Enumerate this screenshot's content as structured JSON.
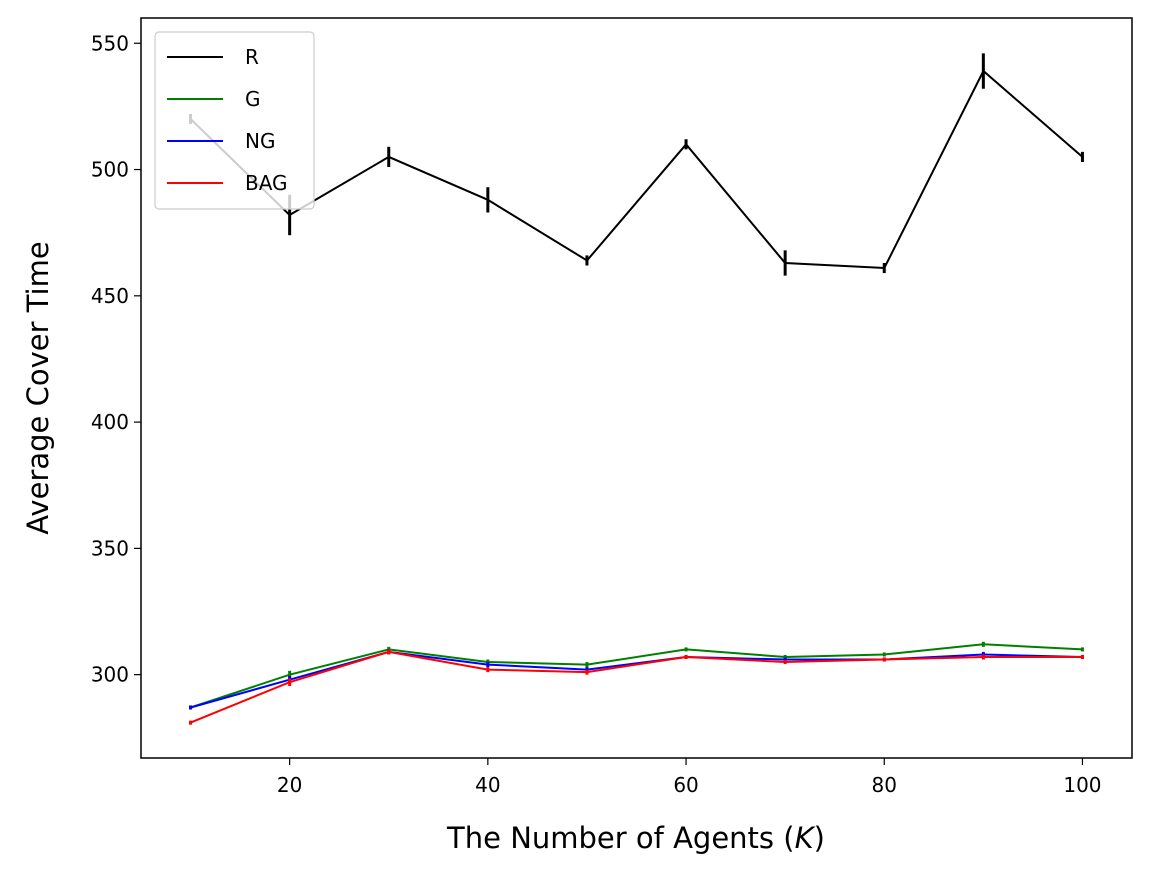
{
  "chart_data": {
    "type": "line",
    "xlabel": "The Number of Agents (",
    "xlabel_var": "K",
    "xlabel_end": ")",
    "ylabel": "Average Cover Time",
    "xlim": [
      5,
      105
    ],
    "ylim": [
      267,
      560
    ],
    "xticks": [
      20,
      40,
      60,
      80,
      100
    ],
    "yticks": [
      300,
      350,
      400,
      450,
      500,
      550
    ],
    "x": [
      10,
      20,
      30,
      40,
      50,
      60,
      70,
      80,
      90,
      100
    ],
    "legend": "top-left",
    "grid": false,
    "series": [
      {
        "name": "R",
        "color": "#000000",
        "values": [
          520,
          482,
          505,
          488,
          464,
          510,
          463,
          461,
          539,
          505
        ],
        "errors": [
          2,
          8,
          4,
          5,
          2,
          2,
          5,
          2,
          7,
          2
        ]
      },
      {
        "name": "G",
        "color": "#008000",
        "values": [
          287,
          300,
          310,
          305,
          304,
          310,
          307,
          308,
          312,
          310
        ],
        "errors": [
          0.8,
          1.5,
          1,
          1,
          1,
          0.8,
          0.8,
          0.8,
          1,
          0.8
        ]
      },
      {
        "name": "NG",
        "color": "#0000ff",
        "values": [
          287,
          298,
          309,
          304,
          302,
          307,
          306,
          306,
          308,
          307
        ],
        "errors": [
          0.8,
          1.5,
          1,
          1,
          1,
          0.8,
          0.8,
          0.8,
          1,
          0.8
        ]
      },
      {
        "name": "BAG",
        "color": "#ff0000",
        "values": [
          281,
          297,
          309,
          302,
          301,
          307,
          305,
          306,
          307,
          307
        ],
        "errors": [
          0.8,
          1.5,
          1,
          1,
          1,
          0.8,
          0.8,
          0.8,
          1,
          0.8
        ]
      }
    ]
  }
}
